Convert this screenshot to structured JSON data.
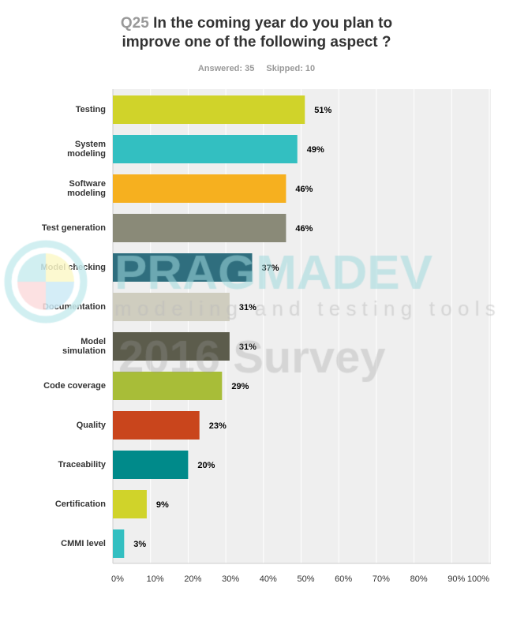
{
  "question": {
    "number": "Q25",
    "text": "In the coming year do you plan to",
    "text2": "improve one of the following aspect ?"
  },
  "meta": {
    "answered": "Answered: 35",
    "skipped": "Skipped: 10"
  },
  "watermark": {
    "brand": "PRAGMADEV",
    "tagline": "modeling and testing tools",
    "survey": "2016 Survey"
  },
  "chart_data": {
    "type": "bar",
    "orientation": "horizontal",
    "title": "Q25 In the coming year do you plan to improve one of the following aspect ?",
    "categories": [
      [
        "Testing"
      ],
      [
        "System",
        "modeling"
      ],
      [
        "Software",
        "modeling"
      ],
      [
        "Test generation"
      ],
      [
        "Model checking"
      ],
      [
        "Documentation"
      ],
      [
        "Model",
        "simulation"
      ],
      [
        "Code coverage"
      ],
      [
        "Quality"
      ],
      [
        "Traceability"
      ],
      [
        "Certification"
      ],
      [
        "CMMI level"
      ]
    ],
    "values": [
      51,
      49,
      46,
      46,
      37,
      31,
      31,
      29,
      23,
      20,
      9,
      3
    ],
    "labels": [
      "51%",
      "49%",
      "46%",
      "46%",
      "37%",
      "31%",
      "31%",
      "29%",
      "23%",
      "20%",
      "9%",
      "3%"
    ],
    "colors": [
      "#d0d32a",
      "#33bfc1",
      "#f6b01f",
      "#8a8a78",
      "#2f6e7e",
      "#cfcdbf",
      "#5c5c4c",
      "#a8bd38",
      "#c9451c",
      "#008a8a",
      "#d0d32a",
      "#33bfc1"
    ],
    "xticks": [
      "0%",
      "10%",
      "20%",
      "30%",
      "40%",
      "50%",
      "60%",
      "70%",
      "80%",
      "90%",
      "100%"
    ],
    "xlim": [
      0,
      100
    ],
    "grid": true
  }
}
